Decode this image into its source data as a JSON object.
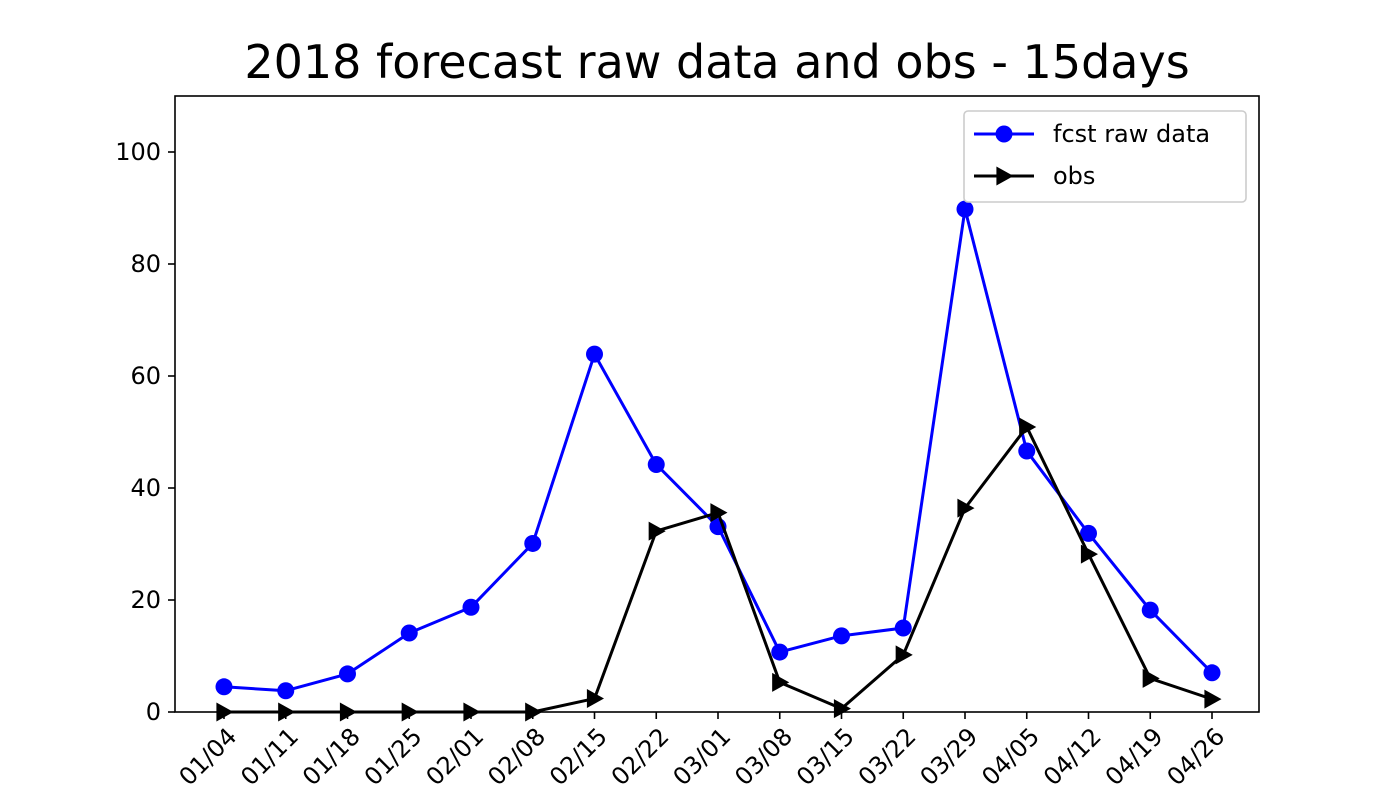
{
  "chart_data": {
    "type": "line",
    "title": "2018 forecast raw data and obs - 15days",
    "xlabel": "",
    "ylabel": "",
    "categories": [
      "01/04",
      "01/11",
      "01/18",
      "01/25",
      "02/01",
      "02/08",
      "02/15",
      "02/22",
      "03/01",
      "03/08",
      "03/15",
      "03/22",
      "03/29",
      "04/05",
      "04/12",
      "04/19",
      "04/26"
    ],
    "ylim": [
      0,
      110
    ],
    "yticks": [
      0,
      20,
      40,
      60,
      80,
      100
    ],
    "grid": false,
    "legend_position": "top-right",
    "series": [
      {
        "name": "fcst raw data",
        "color": "#0000ff",
        "marker": "circle",
        "values": [
          4.5,
          3.8,
          6.8,
          14.1,
          18.7,
          30.1,
          63.9,
          44.2,
          33.1,
          10.7,
          13.6,
          15.0,
          89.8,
          46.6,
          31.9,
          18.2,
          7.0
        ]
      },
      {
        "name": "obs",
        "color": "#000000",
        "marker": "triangle-right",
        "values": [
          0,
          0,
          0,
          0,
          0,
          0,
          2.4,
          32.3,
          35.6,
          5.3,
          0.6,
          10.2,
          36.4,
          50.9,
          28.2,
          6.0,
          2.3
        ]
      }
    ]
  }
}
